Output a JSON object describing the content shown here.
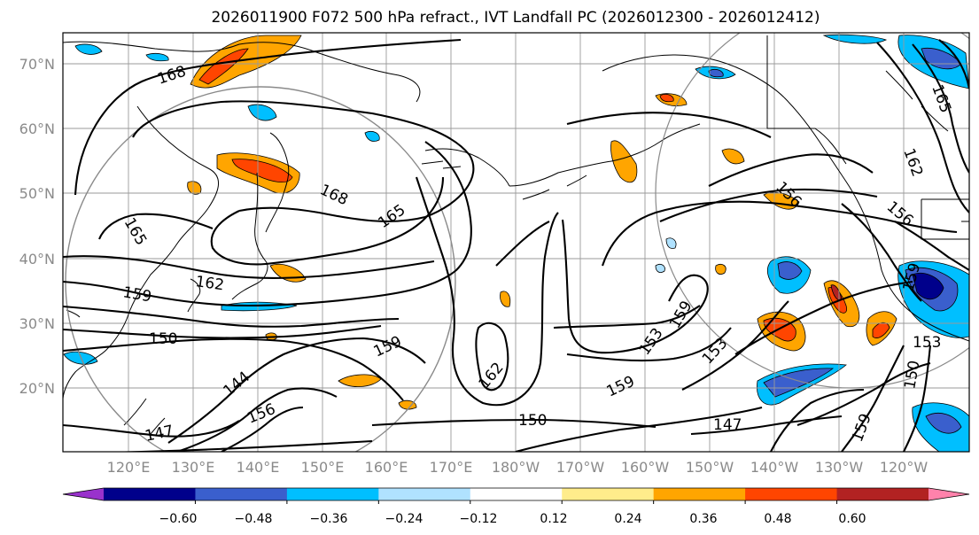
{
  "title": "2026011900 F072 500 hPa refract., IVT Landfall PC (2026012300 - 2026012412)",
  "lat_labels": [
    "70°N",
    "60°N",
    "50°N",
    "40°N",
    "30°N",
    "20°N"
  ],
  "lon_labels": [
    "120°E",
    "130°E",
    "140°E",
    "150°E",
    "160°E",
    "170°E",
    "180°W",
    "170°W",
    "160°W",
    "150°W",
    "140°W",
    "130°W",
    "120°W"
  ],
  "colorbar": {
    "ticks": [
      "−0.60",
      "−0.48",
      "−0.36",
      "−0.24",
      "−0.12",
      "0.12",
      "0.24",
      "0.36",
      "0.48",
      "0.60"
    ],
    "colors": [
      "#9932cc",
      "#00008b",
      "#3a5fcd",
      "#00bfff",
      "#b0e2ff",
      "#ffffff",
      "#ffec8b",
      "#ffa500",
      "#ff4500",
      "#b22222",
      "#ff82ab"
    ]
  },
  "contour_labels": [
    "168",
    "168",
    "165",
    "165",
    "162",
    "159",
    "150",
    "144",
    "147",
    "156",
    "159",
    "162",
    "150",
    "159",
    "153",
    "159",
    "153",
    "147",
    "156",
    "156",
    "162",
    "165",
    "159",
    "153",
    "150",
    "159"
  ]
}
